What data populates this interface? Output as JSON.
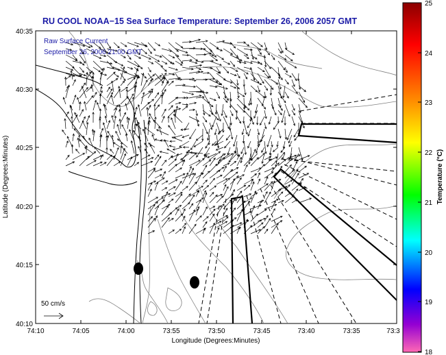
{
  "title": "RU COOL  NOAA−15  Sea Surface Temperature:  September 26, 2006 2057 GMT",
  "overlay": {
    "line1": "Raw Surface Current",
    "line2": "September 26, 2006 21:00 GMT"
  },
  "x_axis": {
    "label": "Longitude (Degrees:Minutes)",
    "ticks": [
      "74:10",
      "74:05",
      "74:00",
      "73:55",
      "73:50",
      "73:45",
      "73:40",
      "73:35",
      "73:3"
    ]
  },
  "y_axis": {
    "label": "Latitude (Degrees:Minutes)",
    "ticks": [
      "40:35",
      "40:30",
      "40:25",
      "40:20",
      "40:15",
      "40:10"
    ]
  },
  "scale_arrow": {
    "label": "50 cm/s"
  },
  "colorbar": {
    "label": "Temperature (°C)",
    "ticks": [
      "25",
      "24",
      "23",
      "22",
      "21",
      "20",
      "19",
      "18"
    ],
    "gradient_colors": [
      "#8b0000",
      "#ff0000",
      "#ff8c00",
      "#ffff00",
      "#00ff00",
      "#00ffff",
      "#0000ff",
      "#9400d3",
      "#ff69b4"
    ]
  },
  "colors": {
    "title_blue": "#1a1aa6",
    "coastline": "#000000",
    "contour": "#808080",
    "arrow": "#000000"
  }
}
